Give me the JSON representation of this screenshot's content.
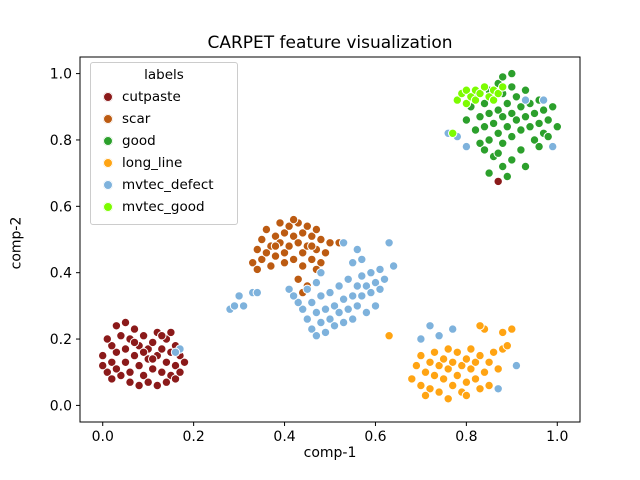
{
  "title": "CARPET feature visualization",
  "axes": {
    "xlabel": "comp-1",
    "ylabel": "comp-2",
    "xtick_labels": [
      "0.0",
      "0.2",
      "0.4",
      "0.6",
      "0.8",
      "1.0"
    ],
    "xtick_values": [
      0.0,
      0.2,
      0.4,
      0.6,
      0.8,
      1.0
    ],
    "ytick_labels": [
      "0.0",
      "0.2",
      "0.4",
      "0.6",
      "0.8",
      "1.0"
    ],
    "ytick_values": [
      0.0,
      0.2,
      0.4,
      0.6,
      0.8,
      1.0
    ],
    "xlim": [
      -0.05,
      1.05
    ],
    "ylim": [
      -0.05,
      1.05
    ]
  },
  "legend": {
    "title": "labels"
  },
  "chart_data": {
    "type": "scatter",
    "title": "CARPET feature visualization",
    "xlabel": "comp-1",
    "ylabel": "comp-2",
    "xlim": [
      -0.05,
      1.05
    ],
    "ylim": [
      -0.05,
      1.05
    ],
    "grid": false,
    "legend_position": "upper left",
    "marker": {
      "shape": "circle",
      "edge_color": "#ffffff"
    },
    "series": [
      {
        "name": "cutpaste",
        "color": "#8B1A1A",
        "points": [
          [
            0.01,
            0.1
          ],
          [
            0.02,
            0.13
          ],
          [
            0.03,
            0.16
          ],
          [
            0.0,
            0.12
          ],
          [
            0.02,
            0.18
          ],
          [
            0.04,
            0.21
          ],
          [
            0.05,
            0.13
          ],
          [
            0.05,
            0.17
          ],
          [
            0.06,
            0.1
          ],
          [
            0.06,
            0.2
          ],
          [
            0.07,
            0.15
          ],
          [
            0.07,
            0.23
          ],
          [
            0.08,
            0.12
          ],
          [
            0.08,
            0.18
          ],
          [
            0.09,
            0.09
          ],
          [
            0.09,
            0.21
          ],
          [
            0.1,
            0.14
          ],
          [
            0.1,
            0.17
          ],
          [
            0.11,
            0.11
          ],
          [
            0.11,
            0.19
          ],
          [
            0.12,
            0.15
          ],
          [
            0.12,
            0.22
          ],
          [
            0.13,
            0.1
          ],
          [
            0.13,
            0.17
          ],
          [
            0.14,
            0.13
          ],
          [
            0.14,
            0.2
          ],
          [
            0.15,
            0.16
          ],
          [
            0.15,
            0.09
          ],
          [
            0.16,
            0.12
          ],
          [
            0.16,
            0.18
          ],
          [
            0.17,
            0.15
          ],
          [
            0.03,
            0.24
          ],
          [
            0.05,
            0.25
          ],
          [
            0.04,
            0.09
          ],
          [
            0.02,
            0.08
          ],
          [
            0.06,
            0.07
          ],
          [
            0.08,
            0.06
          ],
          [
            0.1,
            0.07
          ],
          [
            0.12,
            0.06
          ],
          [
            0.14,
            0.07
          ],
          [
            0.16,
            0.08
          ],
          [
            0.0,
            0.15
          ],
          [
            0.01,
            0.2
          ],
          [
            0.03,
            0.11
          ],
          [
            0.07,
            0.19
          ],
          [
            0.09,
            0.16
          ],
          [
            0.11,
            0.14
          ],
          [
            0.13,
            0.21
          ],
          [
            0.15,
            0.22
          ],
          [
            0.17,
            0.1
          ],
          [
            0.18,
            0.13
          ],
          [
            0.87,
            0.675
          ]
        ]
      },
      {
        "name": "scar",
        "color": "#BC5B12",
        "points": [
          [
            0.33,
            0.43
          ],
          [
            0.34,
            0.47
          ],
          [
            0.35,
            0.5
          ],
          [
            0.35,
            0.44
          ],
          [
            0.36,
            0.53
          ],
          [
            0.37,
            0.48
          ],
          [
            0.37,
            0.42
          ],
          [
            0.38,
            0.51
          ],
          [
            0.38,
            0.45
          ],
          [
            0.39,
            0.55
          ],
          [
            0.39,
            0.49
          ],
          [
            0.4,
            0.52
          ],
          [
            0.4,
            0.46
          ],
          [
            0.41,
            0.54
          ],
          [
            0.41,
            0.48
          ],
          [
            0.42,
            0.51
          ],
          [
            0.42,
            0.44
          ],
          [
            0.43,
            0.55
          ],
          [
            0.43,
            0.49
          ],
          [
            0.44,
            0.52
          ],
          [
            0.44,
            0.46
          ],
          [
            0.45,
            0.54
          ],
          [
            0.45,
            0.48
          ],
          [
            0.46,
            0.51
          ],
          [
            0.46,
            0.44
          ],
          [
            0.47,
            0.53
          ],
          [
            0.47,
            0.47
          ],
          [
            0.48,
            0.5
          ],
          [
            0.48,
            0.43
          ],
          [
            0.49,
            0.46
          ],
          [
            0.5,
            0.49
          ],
          [
            0.36,
            0.46
          ],
          [
            0.34,
            0.41
          ],
          [
            0.4,
            0.43
          ],
          [
            0.44,
            0.42
          ],
          [
            0.38,
            0.48
          ],
          [
            0.46,
            0.48
          ],
          [
            0.43,
            0.38
          ],
          [
            0.44,
            0.34
          ],
          [
            0.45,
            0.36
          ],
          [
            0.47,
            0.41
          ],
          [
            0.52,
            0.49
          ],
          [
            0.42,
            0.56
          ]
        ]
      },
      {
        "name": "good",
        "color": "#2CA02C",
        "points": [
          [
            0.8,
            0.86
          ],
          [
            0.81,
            0.9
          ],
          [
            0.82,
            0.83
          ],
          [
            0.82,
            0.93
          ],
          [
            0.83,
            0.87
          ],
          [
            0.83,
            0.79
          ],
          [
            0.84,
            0.91
          ],
          [
            0.84,
            0.84
          ],
          [
            0.85,
            0.95
          ],
          [
            0.85,
            0.88
          ],
          [
            0.85,
            0.8
          ],
          [
            0.86,
            0.92
          ],
          [
            0.86,
            0.85
          ],
          [
            0.87,
            0.97
          ],
          [
            0.87,
            0.89
          ],
          [
            0.87,
            0.82
          ],
          [
            0.88,
            0.94
          ],
          [
            0.88,
            0.87
          ],
          [
            0.88,
            0.79
          ],
          [
            0.89,
            0.91
          ],
          [
            0.89,
            0.84
          ],
          [
            0.9,
            0.96
          ],
          [
            0.9,
            0.88
          ],
          [
            0.9,
            0.81
          ],
          [
            0.91,
            0.93
          ],
          [
            0.91,
            0.86
          ],
          [
            0.92,
            0.9
          ],
          [
            0.92,
            0.83
          ],
          [
            0.93,
            0.95
          ],
          [
            0.93,
            0.87
          ],
          [
            0.94,
            0.91
          ],
          [
            0.94,
            0.84
          ],
          [
            0.95,
            0.88
          ],
          [
            0.95,
            0.8
          ],
          [
            0.96,
            0.92
          ],
          [
            0.96,
            0.85
          ],
          [
            0.97,
            0.89
          ],
          [
            0.97,
            0.82
          ],
          [
            0.98,
            0.86
          ],
          [
            0.99,
            0.9
          ],
          [
            1.0,
            0.84
          ],
          [
            0.88,
            0.99
          ],
          [
            0.9,
            1.0
          ],
          [
            0.86,
            0.75
          ],
          [
            0.88,
            0.72
          ],
          [
            0.9,
            0.74
          ],
          [
            0.92,
            0.77
          ],
          [
            0.85,
            0.7
          ],
          [
            0.93,
            0.72
          ],
          [
            0.89,
            0.69
          ],
          [
            0.96,
            0.78
          ],
          [
            0.98,
            0.81
          ],
          [
            0.84,
            0.77
          ],
          [
            0.87,
            0.76
          ]
        ]
      },
      {
        "name": "long_line",
        "color": "#FFA413",
        "points": [
          [
            0.68,
            0.08
          ],
          [
            0.69,
            0.12
          ],
          [
            0.7,
            0.06
          ],
          [
            0.7,
            0.15
          ],
          [
            0.71,
            0.1
          ],
          [
            0.72,
            0.13
          ],
          [
            0.72,
            0.05
          ],
          [
            0.73,
            0.09
          ],
          [
            0.73,
            0.16
          ],
          [
            0.74,
            0.12
          ],
          [
            0.74,
            0.04
          ],
          [
            0.75,
            0.14
          ],
          [
            0.75,
            0.08
          ],
          [
            0.76,
            0.11
          ],
          [
            0.76,
            0.17
          ],
          [
            0.77,
            0.06
          ],
          [
            0.77,
            0.13
          ],
          [
            0.78,
            0.09
          ],
          [
            0.78,
            0.16
          ],
          [
            0.79,
            0.12
          ],
          [
            0.79,
            0.04
          ],
          [
            0.8,
            0.14
          ],
          [
            0.8,
            0.07
          ],
          [
            0.81,
            0.11
          ],
          [
            0.81,
            0.17
          ],
          [
            0.82,
            0.08
          ],
          [
            0.82,
            0.13
          ],
          [
            0.83,
            0.05
          ],
          [
            0.83,
            0.15
          ],
          [
            0.84,
            0.1
          ],
          [
            0.85,
            0.13
          ],
          [
            0.85,
            0.06
          ],
          [
            0.86,
            0.16
          ],
          [
            0.87,
            0.11
          ],
          [
            0.88,
            0.17
          ],
          [
            0.88,
            0.22
          ],
          [
            0.89,
            0.18
          ],
          [
            0.9,
            0.23
          ],
          [
            0.84,
            0.23
          ],
          [
            0.83,
            0.24
          ],
          [
            0.71,
            0.03
          ],
          [
            0.76,
            0.02
          ],
          [
            0.8,
            0.03
          ],
          [
            0.63,
            0.21
          ]
        ]
      },
      {
        "name": "mvtec_defect",
        "color": "#7EB2DC",
        "points": [
          [
            0.28,
            0.29
          ],
          [
            0.29,
            0.3
          ],
          [
            0.3,
            0.33
          ],
          [
            0.31,
            0.3
          ],
          [
            0.33,
            0.34
          ],
          [
            0.34,
            0.34
          ],
          [
            0.44,
            0.29
          ],
          [
            0.45,
            0.26
          ],
          [
            0.46,
            0.31
          ],
          [
            0.46,
            0.23
          ],
          [
            0.47,
            0.28
          ],
          [
            0.47,
            0.21
          ],
          [
            0.48,
            0.25
          ],
          [
            0.48,
            0.33
          ],
          [
            0.49,
            0.29
          ],
          [
            0.49,
            0.22
          ],
          [
            0.5,
            0.26
          ],
          [
            0.5,
            0.34
          ],
          [
            0.51,
            0.3
          ],
          [
            0.51,
            0.24
          ],
          [
            0.52,
            0.28
          ],
          [
            0.52,
            0.36
          ],
          [
            0.53,
            0.32
          ],
          [
            0.53,
            0.25
          ],
          [
            0.54,
            0.29
          ],
          [
            0.54,
            0.38
          ],
          [
            0.55,
            0.33
          ],
          [
            0.55,
            0.26
          ],
          [
            0.56,
            0.36
          ],
          [
            0.56,
            0.3
          ],
          [
            0.57,
            0.39
          ],
          [
            0.57,
            0.33
          ],
          [
            0.58,
            0.36
          ],
          [
            0.58,
            0.28
          ],
          [
            0.59,
            0.4
          ],
          [
            0.59,
            0.34
          ],
          [
            0.6,
            0.37
          ],
          [
            0.6,
            0.3
          ],
          [
            0.61,
            0.41
          ],
          [
            0.61,
            0.35
          ],
          [
            0.62,
            0.38
          ],
          [
            0.55,
            0.43
          ],
          [
            0.56,
            0.47
          ],
          [
            0.57,
            0.44
          ],
          [
            0.53,
            0.49
          ],
          [
            0.48,
            0.4
          ],
          [
            0.47,
            0.37
          ],
          [
            0.45,
            0.35
          ],
          [
            0.43,
            0.31
          ],
          [
            0.41,
            0.35
          ],
          [
            0.42,
            0.33
          ],
          [
            0.63,
            0.49
          ],
          [
            0.64,
            0.42
          ],
          [
            0.78,
            0.81
          ],
          [
            0.76,
            0.82
          ],
          [
            0.8,
            0.78
          ],
          [
            0.93,
            0.92
          ],
          [
            0.97,
            0.92
          ],
          [
            0.99,
            0.78
          ],
          [
            0.7,
            0.2
          ],
          [
            0.72,
            0.24
          ],
          [
            0.74,
            0.21
          ],
          [
            0.77,
            0.23
          ],
          [
            0.87,
            0.05
          ],
          [
            0.91,
            0.12
          ],
          [
            0.17,
            0.17
          ],
          [
            0.16,
            0.16
          ]
        ]
      },
      {
        "name": "mvtec_good",
        "color": "#7CFC00",
        "points": [
          [
            0.78,
            0.92
          ],
          [
            0.79,
            0.94
          ],
          [
            0.8,
            0.91
          ],
          [
            0.8,
            0.95
          ],
          [
            0.81,
            0.93
          ],
          [
            0.82,
            0.95
          ],
          [
            0.82,
            0.92
          ],
          [
            0.83,
            0.94
          ],
          [
            0.84,
            0.96
          ],
          [
            0.85,
            0.93
          ],
          [
            0.86,
            0.95
          ],
          [
            0.86,
            0.92
          ],
          [
            0.87,
            0.94
          ],
          [
            0.88,
            0.96
          ],
          [
            0.77,
            0.82
          ]
        ]
      }
    ]
  }
}
